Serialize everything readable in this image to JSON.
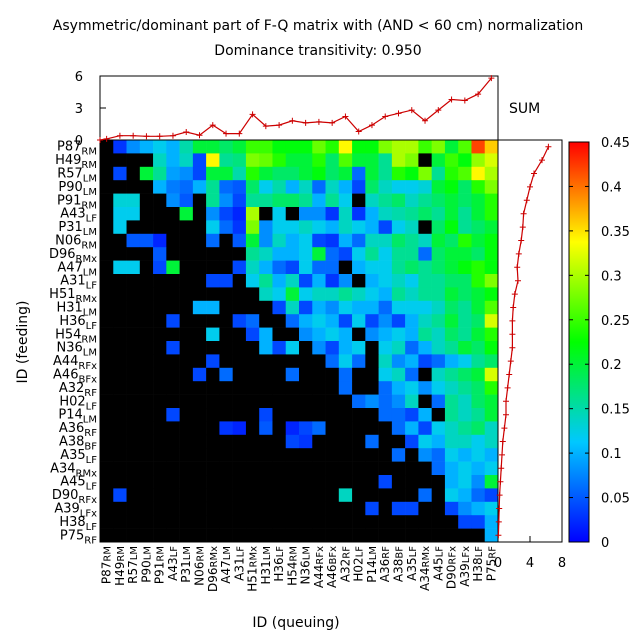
{
  "chart_data": {
    "type": "heatmap",
    "title": "Asymmetric/dominant part of F-Q matrix with (AND < 60 cm) normalization",
    "subtitle": "Dominance transitivity: 0.950",
    "xlabel": "ID (queuing)",
    "ylabel": "ID (feeding)",
    "ids": [
      {
        "base": "P87",
        "sub": "RM"
      },
      {
        "base": "H49",
        "sub": "RM"
      },
      {
        "base": "R57",
        "sub": "LM"
      },
      {
        "base": "P90",
        "sub": "LM"
      },
      {
        "base": "P91",
        "sub": "RM"
      },
      {
        "base": "A43",
        "sub": "LF"
      },
      {
        "base": "P31",
        "sub": "LM"
      },
      {
        "base": "N06",
        "sub": "RM"
      },
      {
        "base": "D96",
        "sub": "RMx"
      },
      {
        "base": "A47",
        "sub": "LM"
      },
      {
        "base": "A31",
        "sub": "LF"
      },
      {
        "base": "H51",
        "sub": "RMx"
      },
      {
        "base": "H31",
        "sub": "LM"
      },
      {
        "base": "H36",
        "sub": "LF"
      },
      {
        "base": "H54",
        "sub": "RM"
      },
      {
        "base": "N36",
        "sub": "LM"
      },
      {
        "base": "A44",
        "sub": "RFx"
      },
      {
        "base": "A46",
        "sub": "BFx"
      },
      {
        "base": "A32",
        "sub": "RF"
      },
      {
        "base": "H02",
        "sub": "LF"
      },
      {
        "base": "P14",
        "sub": "LM"
      },
      {
        "base": "A36",
        "sub": "RF"
      },
      {
        "base": "A38",
        "sub": "BF"
      },
      {
        "base": "A35",
        "sub": "LF"
      },
      {
        "base": "A34",
        "sub": "RMx"
      },
      {
        "base": "A45",
        "sub": "LF"
      },
      {
        "base": "D90",
        "sub": "RFx"
      },
      {
        "base": "A39",
        "sub": "LFx"
      },
      {
        "base": "H38",
        "sub": "LF"
      },
      {
        "base": "P75",
        "sub": "RF"
      }
    ],
    "top_panel": {
      "label": "SUM",
      "yticks": [
        0,
        3,
        6
      ],
      "ylim": [
        0,
        6
      ],
      "values": [
        0.1,
        0.4,
        0.4,
        0.35,
        0.35,
        0.4,
        0.75,
        0.45,
        1.4,
        0.6,
        0.6,
        2.4,
        1.3,
        1.4,
        1.8,
        1.6,
        1.7,
        1.6,
        2.2,
        0.8,
        1.4,
        2.2,
        2.5,
        2.8,
        1.8,
        2.8,
        3.8,
        3.7,
        4.3,
        5.8
      ]
    },
    "right_panel": {
      "xticks": [
        0,
        4,
        8
      ],
      "xlim": [
        0,
        8
      ],
      "values": [
        6.3,
        5.5,
        4.5,
        4.0,
        3.6,
        3.2,
        3.1,
        2.9,
        2.6,
        2.4,
        2.5,
        2.1,
        1.9,
        1.8,
        1.8,
        1.8,
        1.6,
        1.4,
        1.2,
        1.0,
        1.0,
        0.8,
        0.6,
        0.5,
        0.4,
        0.3,
        0.2,
        0.15,
        0.1,
        0.05
      ]
    },
    "colorbar": {
      "range": [
        0,
        0.45
      ],
      "ticks": [
        "0",
        "0.05",
        "0.1",
        "0.15",
        "0.2",
        "0.25",
        "0.3",
        "0.35",
        "0.4",
        "0.45"
      ]
    },
    "matrix": [
      [
        0,
        0.03,
        0.08,
        0.1,
        0.12,
        0.1,
        0.15,
        0.2,
        0.2,
        0.18,
        0.2,
        0.25,
        0.25,
        0.22,
        0.22,
        0.22,
        0.27,
        0.24,
        0.34,
        0.22,
        0.22,
        0.28,
        0.3,
        0.3,
        0.25,
        0.28,
        0.2,
        0.26,
        0.42,
        0.36
      ],
      [
        0,
        0,
        0,
        0,
        0.14,
        0.1,
        0.14,
        0.04,
        0.34,
        0.16,
        0.17,
        0.28,
        0.27,
        0.24,
        0.2,
        0.2,
        0.24,
        0.18,
        0.26,
        0.2,
        0.2,
        0.16,
        0.3,
        0.28,
        0,
        0.2,
        0.25,
        0.22,
        0.29,
        0.32
      ],
      [
        0,
        0.04,
        0,
        0.2,
        0.16,
        0.09,
        0.08,
        0.04,
        0.2,
        0.2,
        0.15,
        0.24,
        0.2,
        0.18,
        0.18,
        0.2,
        0.22,
        0.18,
        0.2,
        0.06,
        0.2,
        0.16,
        0.24,
        0.22,
        0.28,
        0.16,
        0.24,
        0.26,
        0.34,
        0.3
      ],
      [
        0,
        0,
        0,
        0,
        0.1,
        0.07,
        0.06,
        0.1,
        0.16,
        0.06,
        0.05,
        0.18,
        0.12,
        0.15,
        0.1,
        0.14,
        0.06,
        0.14,
        0.1,
        0.04,
        0.18,
        0.14,
        0.12,
        0.12,
        0.13,
        0.2,
        0.22,
        0.18,
        0.24,
        0.28
      ],
      [
        0,
        0.13,
        0.13,
        0,
        0,
        0.08,
        0.05,
        0,
        0.16,
        0.08,
        0.04,
        0.16,
        0.16,
        0.18,
        0.18,
        0.16,
        0.1,
        0.16,
        0.12,
        0,
        0.14,
        0.16,
        0.18,
        0.14,
        0.16,
        0.18,
        0.2,
        0.18,
        0.2,
        0.24
      ],
      [
        0,
        0.12,
        0.12,
        0,
        0,
        0,
        0.2,
        0,
        0.08,
        0.04,
        0.02,
        0.3,
        0,
        0.12,
        0,
        0.08,
        0.08,
        0.03,
        0.14,
        0.03,
        0.1,
        0.14,
        0.15,
        0.16,
        0.18,
        0.16,
        0.2,
        0.16,
        0.2,
        0.24
      ],
      [
        0,
        0.12,
        0,
        0,
        0,
        0,
        0,
        0,
        0.12,
        0.06,
        0.03,
        0.28,
        0.08,
        0.12,
        0.12,
        0.14,
        0.12,
        0.1,
        0.14,
        0.12,
        0.1,
        0.04,
        0.12,
        0.14,
        0,
        0.18,
        0.22,
        0.16,
        0.18,
        0.2
      ],
      [
        0,
        0,
        0.05,
        0.05,
        0.02,
        0,
        0,
        0,
        0.06,
        0,
        0.05,
        0.2,
        0.08,
        0.14,
        0.1,
        0.12,
        0.04,
        0.03,
        0.1,
        0.06,
        0.14,
        0.14,
        0.18,
        0.16,
        0.14,
        0.2,
        0.18,
        0.24,
        0.2,
        0.22
      ],
      [
        0,
        0,
        0,
        0,
        0.05,
        0,
        0,
        0,
        0,
        0,
        0,
        0.16,
        0.14,
        0.1,
        0.1,
        0.12,
        0.2,
        0.06,
        0.04,
        0.12,
        0.16,
        0.12,
        0.16,
        0.16,
        0.06,
        0.18,
        0.2,
        0.2,
        0.18,
        0.22
      ],
      [
        0,
        0.12,
        0.12,
        0,
        0.04,
        0.2,
        0,
        0,
        0,
        0,
        0.04,
        0.14,
        0.1,
        0.06,
        0.04,
        0.12,
        0.06,
        0.06,
        0,
        0.1,
        0.12,
        0.12,
        0.16,
        0.18,
        0.16,
        0.18,
        0.2,
        0.22,
        0.24,
        0.22
      ],
      [
        0,
        0,
        0,
        0,
        0,
        0,
        0,
        0,
        0.04,
        0.04,
        0,
        0.12,
        0.16,
        0.1,
        0.14,
        0.04,
        0.1,
        0.03,
        0.08,
        0,
        0.1,
        0.12,
        0.14,
        0.12,
        0.16,
        0.16,
        0.18,
        0.18,
        0.24,
        0.28
      ],
      [
        0,
        0,
        0,
        0,
        0,
        0,
        0,
        0,
        0,
        0,
        0,
        0,
        0.14,
        0.12,
        0.2,
        0.12,
        0.14,
        0.14,
        0.16,
        0.14,
        0.12,
        0.1,
        0.16,
        0.14,
        0.16,
        0.16,
        0.2,
        0.18,
        0.2,
        0.22
      ],
      [
        0,
        0,
        0,
        0,
        0,
        0,
        0,
        0.1,
        0.1,
        0,
        0,
        0,
        0,
        0.04,
        0.14,
        0.04,
        0.1,
        0.08,
        0.12,
        0.1,
        0.1,
        0.06,
        0.12,
        0.12,
        0.12,
        0.14,
        0.18,
        0.16,
        0.2,
        0.26
      ],
      [
        0,
        0,
        0,
        0,
        0,
        0.04,
        0,
        0,
        0,
        0,
        0.04,
        0.06,
        0,
        0,
        0.06,
        0.1,
        0.12,
        0.1,
        0.04,
        0.12,
        0.04,
        0.08,
        0.04,
        0.1,
        0.14,
        0.16,
        0.2,
        0.16,
        0.18,
        0.32
      ],
      [
        0,
        0,
        0,
        0,
        0,
        0,
        0,
        0,
        0.12,
        0,
        0,
        0.04,
        0.1,
        0,
        0,
        0.08,
        0.1,
        0.12,
        0.1,
        0,
        0.08,
        0.1,
        0.12,
        0.1,
        0.16,
        0.14,
        0.18,
        0.16,
        0.2,
        0.24
      ],
      [
        0,
        0,
        0,
        0,
        0,
        0.04,
        0,
        0,
        0,
        0,
        0,
        0,
        0.1,
        0.04,
        0.12,
        0,
        0.08,
        0.04,
        0.1,
        0.12,
        0,
        0.12,
        0.14,
        0.06,
        0.1,
        0.14,
        0.16,
        0.2,
        0.18,
        0.22
      ],
      [
        0,
        0,
        0,
        0,
        0,
        0,
        0,
        0,
        0.04,
        0,
        0,
        0,
        0,
        0,
        0,
        0,
        0,
        0.06,
        0.12,
        0.06,
        0,
        0.14,
        0.08,
        0.1,
        0.04,
        0.06,
        0.1,
        0.12,
        0.16,
        0.18
      ],
      [
        0,
        0,
        0,
        0,
        0,
        0,
        0,
        0.04,
        0,
        0.06,
        0,
        0,
        0,
        0,
        0.06,
        0,
        0,
        0,
        0.06,
        0,
        0,
        0.12,
        0.14,
        0.06,
        0,
        0.14,
        0.16,
        0.18,
        0.2,
        0.32
      ],
      [
        0,
        0,
        0,
        0,
        0,
        0,
        0,
        0,
        0,
        0,
        0,
        0,
        0,
        0,
        0,
        0,
        0,
        0,
        0.06,
        0,
        0,
        0.06,
        0.1,
        0.12,
        0.08,
        0.12,
        0.14,
        0.16,
        0.18,
        0.24
      ],
      [
        0,
        0,
        0,
        0,
        0,
        0,
        0,
        0,
        0,
        0,
        0,
        0,
        0,
        0,
        0,
        0,
        0,
        0,
        0,
        0.06,
        0.08,
        0.06,
        0.08,
        0.14,
        0,
        0.06,
        0.16,
        0.14,
        0.18,
        0.2
      ],
      [
        0,
        0,
        0,
        0,
        0,
        0.04,
        0,
        0,
        0,
        0,
        0,
        0,
        0.04,
        0,
        0,
        0,
        0,
        0,
        0,
        0,
        0,
        0.06,
        0.06,
        0.04,
        0.1,
        0,
        0.16,
        0.14,
        0.16,
        0.2
      ],
      [
        0,
        0,
        0,
        0,
        0,
        0,
        0,
        0,
        0,
        0.03,
        0.02,
        0,
        0.05,
        0,
        0.02,
        0.04,
        0.06,
        0,
        0,
        0,
        0,
        0,
        0.06,
        0.1,
        0.04,
        0.12,
        0.14,
        0.16,
        0.18,
        0.14
      ],
      [
        0,
        0,
        0,
        0,
        0,
        0,
        0,
        0,
        0,
        0,
        0,
        0,
        0,
        0,
        0.04,
        0.03,
        0,
        0,
        0,
        0,
        0.06,
        0,
        0,
        0.04,
        0.12,
        0.1,
        0.14,
        0.14,
        0.12,
        0.14
      ],
      [
        0,
        0,
        0,
        0,
        0,
        0,
        0,
        0,
        0,
        0,
        0,
        0,
        0,
        0,
        0,
        0,
        0,
        0,
        0,
        0,
        0,
        0,
        0.06,
        0,
        0.08,
        0.06,
        0.12,
        0.1,
        0.12,
        0.1
      ],
      [
        0,
        0,
        0,
        0,
        0,
        0,
        0,
        0,
        0,
        0,
        0,
        0,
        0,
        0,
        0,
        0,
        0,
        0,
        0,
        0,
        0,
        0,
        0,
        0,
        0,
        0.06,
        0.1,
        0.12,
        0.1,
        0.12
      ],
      [
        0,
        0,
        0,
        0,
        0,
        0,
        0,
        0,
        0,
        0,
        0,
        0,
        0,
        0,
        0,
        0,
        0,
        0,
        0,
        0,
        0,
        0.04,
        0,
        0,
        0,
        0,
        0.1,
        0.12,
        0.08,
        0.2
      ],
      [
        0,
        0.04,
        0,
        0,
        0,
        0,
        0,
        0,
        0,
        0,
        0,
        0,
        0,
        0,
        0,
        0,
        0,
        0,
        0.14,
        0,
        0,
        0,
        0,
        0,
        0.06,
        0,
        0.12,
        0.1,
        0.06,
        0.04
      ],
      [
        0,
        0,
        0,
        0,
        0,
        0,
        0,
        0,
        0,
        0,
        0,
        0,
        0,
        0,
        0,
        0,
        0,
        0,
        0,
        0,
        0.04,
        0,
        0.04,
        0.04,
        0,
        0,
        0.04,
        0.08,
        0.1,
        0.12
      ],
      [
        0,
        0,
        0,
        0,
        0,
        0,
        0,
        0,
        0,
        0,
        0,
        0,
        0,
        0,
        0,
        0,
        0,
        0,
        0,
        0,
        0,
        0,
        0,
        0,
        0,
        0,
        0,
        0.04,
        0.04,
        0.1
      ],
      [
        0,
        0,
        0,
        0,
        0,
        0,
        0,
        0,
        0,
        0,
        0,
        0,
        0,
        0,
        0,
        0,
        0,
        0,
        0,
        0,
        0,
        0,
        0,
        0,
        0,
        0,
        0,
        0,
        0,
        0.1
      ]
    ]
  }
}
